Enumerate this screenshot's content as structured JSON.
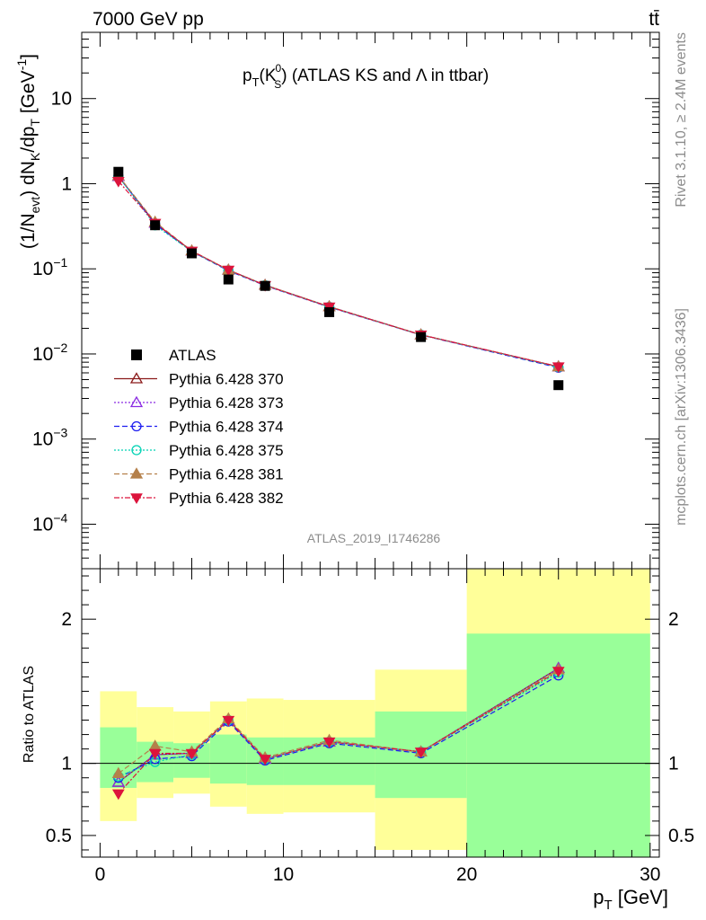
{
  "header": {
    "left": "7000 GeV pp",
    "right": "tt̄"
  },
  "side_labels": {
    "rivet": "Rivet 3.1.10, ≥ 2.4M events",
    "mcplots": "mcplots.cern.ch [arXiv:1306.3436]"
  },
  "chart_data": [
    {
      "type": "line",
      "panel": "main",
      "title": "p_T(K_S^0) (ATLAS KS and Λ in ttbar)",
      "title_parts": {
        "p": "p",
        "T": "T",
        "K": "(K",
        "zero": "0",
        "S": "S",
        "rest": ") (ATLAS KS and Λ in ttbar)"
      },
      "ylabel": "(1/N_evt) dN_K/dp_T [GeV^-1]",
      "ylabel_parts": {
        "a": "(1/N",
        "evt": "evt",
        "b": ") dN",
        "K": "K",
        "c": "/dp",
        "T": "T",
        "d": " [GeV",
        "exp": "-1",
        "e": "]"
      },
      "yscale": "log",
      "ylim": [
        3e-05,
        60
      ],
      "xlim": [
        -1,
        30.5
      ],
      "y_ticks": [
        {
          "v": 10,
          "base": "10",
          "exp": ""
        },
        {
          "v": 1,
          "base": "1",
          "exp": ""
        },
        {
          "v": 0.1,
          "base": "10",
          "exp": "−1"
        },
        {
          "v": 0.01,
          "base": "10",
          "exp": "−2"
        },
        {
          "v": 0.001,
          "base": "10",
          "exp": "−3"
        },
        {
          "v": 0.0001,
          "base": "10",
          "exp": "−4"
        }
      ],
      "watermark": "ATLAS_2019_I1746286",
      "legend_position": "center-left",
      "x": [
        1,
        3,
        5,
        7,
        9,
        12.5,
        17.5,
        25
      ],
      "data": {
        "name": "ATLAS",
        "values": [
          1.38,
          0.325,
          0.152,
          0.075,
          0.063,
          0.031,
          0.0158,
          0.0043
        ]
      },
      "series": [
        {
          "name": "Pythia 6.428 370",
          "color": "#8b1a1a",
          "dash": "",
          "marker": "triangle-open",
          "values": [
            1.22,
            0.345,
            0.162,
            0.097,
            0.0645,
            0.036,
            0.0168,
            0.0071
          ]
        },
        {
          "name": "Pythia 6.428 373",
          "color": "#8a2be2",
          "dash": "2,2",
          "marker": "triangle-open",
          "values": [
            1.22,
            0.345,
            0.162,
            0.097,
            0.0645,
            0.036,
            0.0168,
            0.0071
          ]
        },
        {
          "name": "Pythia 6.428 374",
          "color": "#1c1cf0",
          "dash": "6,3",
          "marker": "circle-open",
          "values": [
            1.22,
            0.335,
            0.16,
            0.095,
            0.0635,
            0.0355,
            0.0167,
            0.0069
          ]
        },
        {
          "name": "Pythia 6.428 375",
          "color": "#00d2b4",
          "dash": "2,2",
          "marker": "circle-open",
          "values": [
            1.22,
            0.325,
            0.16,
            0.096,
            0.064,
            0.0357,
            0.0168,
            0.007
          ]
        },
        {
          "name": "Pythia 6.428 381",
          "color": "#b5804a",
          "dash": "6,3",
          "marker": "triangle-filled",
          "values": [
            1.24,
            0.355,
            0.163,
            0.097,
            0.0645,
            0.036,
            0.0168,
            0.0071
          ]
        },
        {
          "name": "Pythia 6.428 382",
          "color": "#dc143c",
          "dash": "6,2,2,2",
          "marker": "triangle-down-filled",
          "values": [
            1.07,
            0.345,
            0.162,
            0.097,
            0.064,
            0.0358,
            0.0168,
            0.0071
          ]
        }
      ]
    },
    {
      "type": "line",
      "panel": "ratio",
      "ylabel": "Ratio to ATLAS",
      "ylim": [
        0.35,
        2.35
      ],
      "y_ticks": [
        0.5,
        1,
        2
      ],
      "xlim": [
        -1,
        30.5
      ],
      "x_ticks": [
        0,
        10,
        20,
        30
      ],
      "xlabel": "p_T [GeV]",
      "xlabel_parts": {
        "p": "p",
        "T": "T",
        "unit": " [GeV]"
      },
      "bands": [
        {
          "x0": 0,
          "x1": 2,
          "yellow": [
            0.6,
            1.5
          ],
          "green": [
            0.83,
            1.25
          ]
        },
        {
          "x0": 2,
          "x1": 4,
          "yellow": [
            0.76,
            1.39
          ],
          "green": [
            0.87,
            1.15
          ]
        },
        {
          "x0": 4,
          "x1": 6,
          "yellow": [
            0.79,
            1.36
          ],
          "green": [
            0.9,
            1.14
          ]
        },
        {
          "x0": 6,
          "x1": 8,
          "yellow": [
            0.7,
            1.43
          ],
          "green": [
            0.86,
            1.2
          ]
        },
        {
          "x0": 8,
          "x1": 10,
          "yellow": [
            0.65,
            1.45
          ],
          "green": [
            0.85,
            1.18
          ]
        },
        {
          "x0": 10,
          "x1": 15,
          "yellow": [
            0.66,
            1.44
          ],
          "green": [
            0.85,
            1.18
          ]
        },
        {
          "x0": 15,
          "x1": 20,
          "yellow": [
            0.4,
            1.65
          ],
          "green": [
            0.76,
            1.36
          ]
        },
        {
          "x0": 20,
          "x1": 30,
          "yellow": [
            0.35,
            2.35
          ],
          "green": [
            0.35,
            1.9
          ]
        }
      ],
      "x": [
        1,
        3,
        5,
        7,
        9,
        12.5,
        17.5,
        25
      ],
      "series": [
        {
          "name": "Pythia 6.428 370",
          "values": [
            0.87,
            1.06,
            1.07,
            1.3,
            1.03,
            1.15,
            1.08,
            1.66
          ]
        },
        {
          "name": "Pythia 6.428 373",
          "values": [
            0.87,
            1.06,
            1.07,
            1.3,
            1.03,
            1.15,
            1.08,
            1.66
          ]
        },
        {
          "name": "Pythia 6.428 374",
          "values": [
            0.9,
            1.03,
            1.05,
            1.29,
            1.02,
            1.14,
            1.07,
            1.61
          ]
        },
        {
          "name": "Pythia 6.428 375",
          "values": [
            0.91,
            1.01,
            1.06,
            1.3,
            1.03,
            1.15,
            1.08,
            1.63
          ]
        },
        {
          "name": "Pythia 6.428 381",
          "values": [
            0.93,
            1.12,
            1.08,
            1.31,
            1.04,
            1.16,
            1.08,
            1.65
          ]
        },
        {
          "name": "Pythia 6.428 382",
          "values": [
            0.79,
            1.07,
            1.07,
            1.3,
            1.03,
            1.15,
            1.08,
            1.64
          ]
        }
      ]
    }
  ]
}
